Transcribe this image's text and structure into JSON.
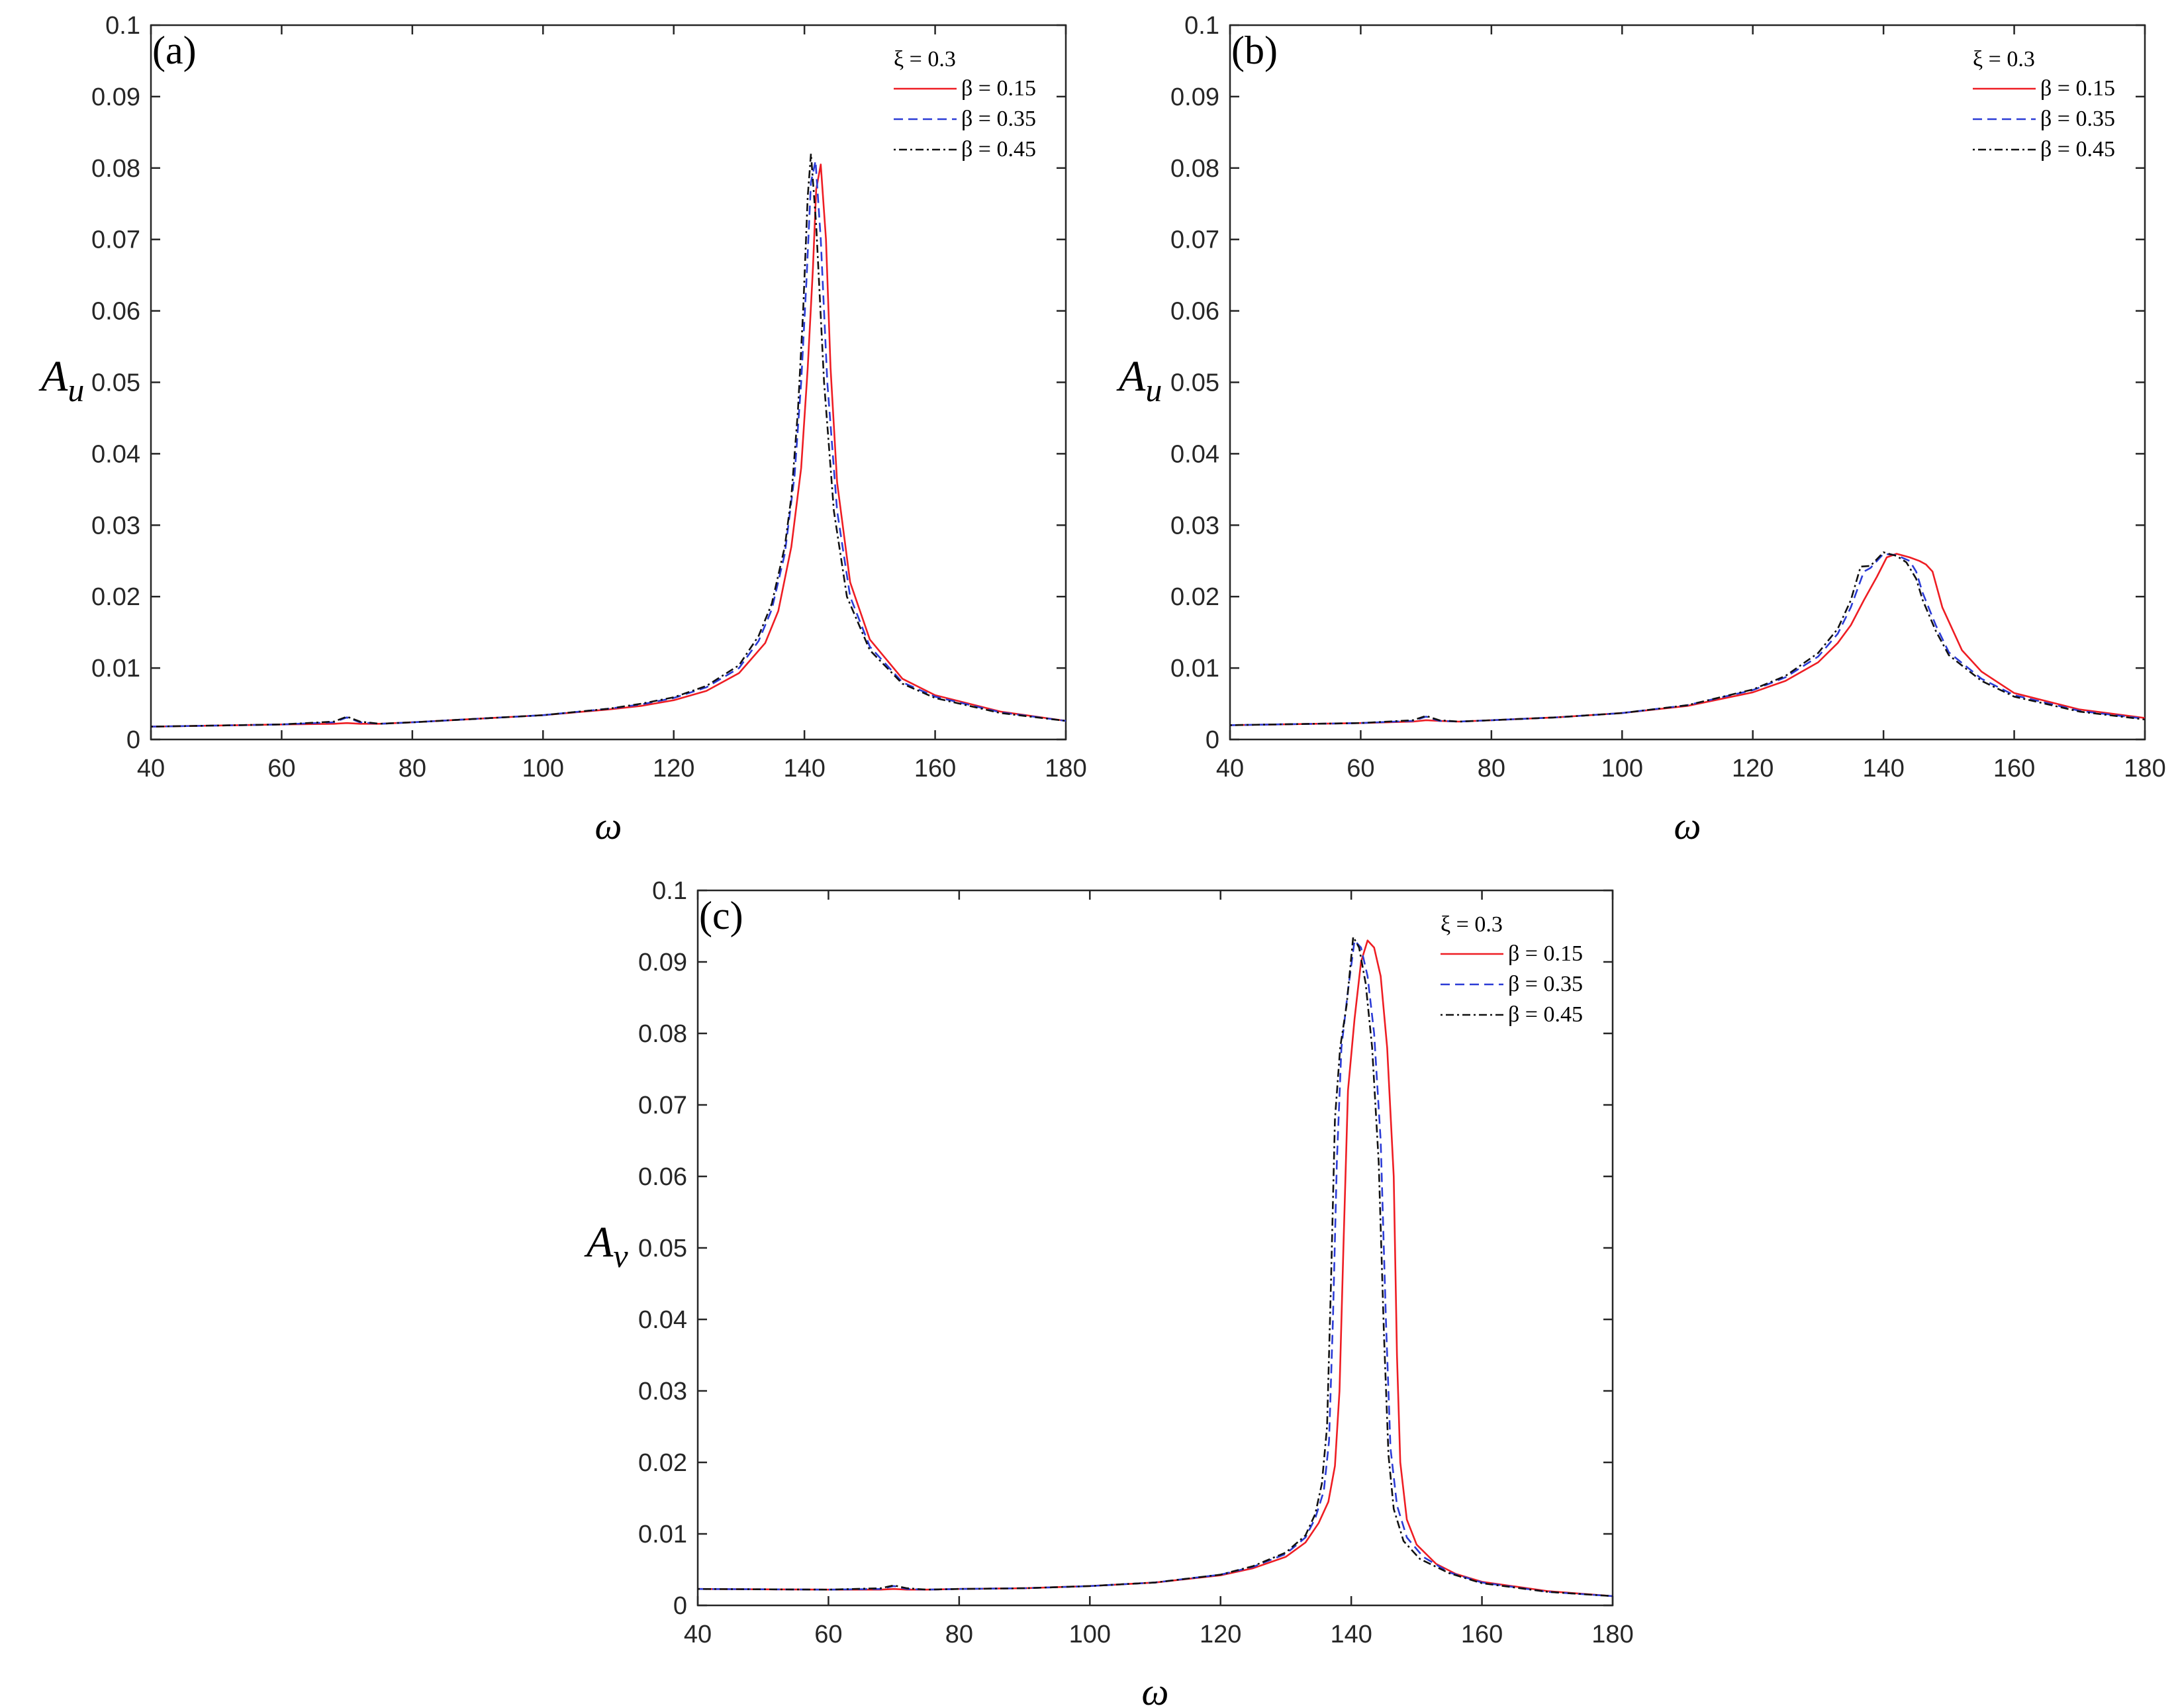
{
  "chart_data": [
    {
      "type": "line",
      "panel_label": "(a)",
      "xlabel": "ω",
      "ylabel_main": "A",
      "ylabel_sub": "u",
      "xlim": [
        40,
        180
      ],
      "ylim": [
        0,
        0.1
      ],
      "xticks": [
        "40",
        "60",
        "80",
        "100",
        "120",
        "140",
        "160",
        "180"
      ],
      "yticks": [
        "0",
        "0.01",
        "0.02",
        "0.03",
        "0.04",
        "0.05",
        "0.06",
        "0.07",
        "0.08",
        "0.09",
        "0.1"
      ],
      "legend_title": "ξ = 0.3",
      "legend_position": "top-right",
      "grid": false,
      "series": [
        {
          "name": "β = 0.15",
          "color": "#ee1d23",
          "dash": "solid",
          "x": [
            40,
            60,
            68,
            70,
            72,
            75,
            80,
            90,
            100,
            110,
            115,
            120,
            125,
            130,
            134,
            136,
            138,
            139.5,
            140.5,
            141.3,
            141.8,
            142.5,
            143.3,
            144,
            145,
            147,
            150,
            155,
            160,
            170,
            180
          ],
          "y": [
            0.0018,
            0.0021,
            0.0022,
            0.0023,
            0.0022,
            0.0022,
            0.0024,
            0.0029,
            0.0034,
            0.0042,
            0.0047,
            0.0055,
            0.0068,
            0.0093,
            0.0135,
            0.018,
            0.027,
            0.038,
            0.052,
            0.066,
            0.077,
            0.0805,
            0.07,
            0.052,
            0.036,
            0.022,
            0.014,
            0.0085,
            0.0062,
            0.0039,
            0.0026
          ]
        },
        {
          "name": "β = 0.35",
          "color": "#2b3bd6",
          "dash": "dashed",
          "x": [
            40,
            60,
            68,
            70,
            72,
            75,
            80,
            90,
            100,
            110,
            115,
            120,
            125,
            130,
            133,
            135,
            137,
            138.5,
            139.5,
            140.3,
            141,
            141.7,
            142.5,
            143.5,
            145,
            147,
            150,
            155,
            160,
            170,
            180
          ],
          "y": [
            0.0018,
            0.0021,
            0.0024,
            0.0031,
            0.0024,
            0.0022,
            0.0024,
            0.0029,
            0.0034,
            0.0043,
            0.0049,
            0.0058,
            0.0073,
            0.01,
            0.0138,
            0.0182,
            0.026,
            0.037,
            0.05,
            0.064,
            0.078,
            0.081,
            0.07,
            0.05,
            0.032,
            0.02,
            0.013,
            0.008,
            0.006,
            0.0038,
            0.0026
          ]
        },
        {
          "name": "β = 0.45",
          "color": "#111111",
          "dash": "dashdot",
          "x": [
            40,
            60,
            68,
            70,
            72,
            75,
            80,
            90,
            100,
            110,
            115,
            120,
            125,
            130,
            133,
            135,
            137,
            138,
            139,
            139.8,
            140.5,
            141,
            141.8,
            143,
            144.5,
            146.5,
            150,
            155,
            160,
            170,
            180
          ],
          "y": [
            0.0018,
            0.0021,
            0.0025,
            0.0032,
            0.0025,
            0.0022,
            0.0024,
            0.0029,
            0.0034,
            0.0043,
            0.005,
            0.0059,
            0.0075,
            0.0104,
            0.0145,
            0.019,
            0.027,
            0.034,
            0.046,
            0.06,
            0.076,
            0.082,
            0.072,
            0.05,
            0.032,
            0.02,
            0.0125,
            0.0078,
            0.0058,
            0.0037,
            0.0026
          ]
        }
      ]
    },
    {
      "type": "line",
      "panel_label": "(b)",
      "xlabel": "ω",
      "ylabel_main": "A",
      "ylabel_sub": "u",
      "xlim": [
        40,
        180
      ],
      "ylim": [
        0,
        0.1
      ],
      "xticks": [
        "40",
        "60",
        "80",
        "100",
        "120",
        "140",
        "160",
        "180"
      ],
      "yticks": [
        "0",
        "0.01",
        "0.02",
        "0.03",
        "0.04",
        "0.05",
        "0.06",
        "0.07",
        "0.08",
        "0.09",
        "0.1"
      ],
      "legend_title": "ξ = 0.3",
      "legend_position": "top-right",
      "grid": false,
      "series": [
        {
          "name": "β = 0.15",
          "color": "#ee1d23",
          "dash": "solid",
          "x": [
            40,
            60,
            68,
            70,
            72,
            75,
            80,
            90,
            100,
            110,
            120,
            125,
            130,
            133,
            135,
            137,
            139,
            140.5,
            142,
            144,
            145.5,
            146.5,
            147.5,
            149,
            152,
            155,
            160,
            170,
            180
          ],
          "y": [
            0.002,
            0.0023,
            0.0025,
            0.0027,
            0.0026,
            0.0025,
            0.0027,
            0.0031,
            0.0037,
            0.0047,
            0.0066,
            0.0082,
            0.0108,
            0.0135,
            0.016,
            0.0195,
            0.0228,
            0.0255,
            0.026,
            0.0255,
            0.025,
            0.0245,
            0.0235,
            0.0185,
            0.0125,
            0.0095,
            0.0065,
            0.0042,
            0.003
          ]
        },
        {
          "name": "β = 0.35",
          "color": "#2b3bd6",
          "dash": "dashed",
          "x": [
            40,
            60,
            68,
            70,
            72,
            75,
            80,
            90,
            100,
            110,
            120,
            125,
            130,
            133,
            135,
            137,
            138,
            140,
            142,
            144,
            145,
            146,
            148,
            150,
            155,
            160,
            170,
            180
          ],
          "y": [
            0.002,
            0.0023,
            0.0026,
            0.0032,
            0.0026,
            0.0025,
            0.0027,
            0.0031,
            0.0037,
            0.0048,
            0.0069,
            0.0087,
            0.0116,
            0.0148,
            0.0185,
            0.0235,
            0.024,
            0.026,
            0.0258,
            0.025,
            0.0235,
            0.0205,
            0.016,
            0.0122,
            0.0085,
            0.0062,
            0.004,
            0.0029
          ]
        },
        {
          "name": "β = 0.45",
          "color": "#111111",
          "dash": "dashdot",
          "x": [
            40,
            60,
            68,
            70,
            72,
            75,
            80,
            90,
            100,
            110,
            120,
            125,
            130,
            133,
            135,
            136.5,
            138,
            140,
            142,
            143.5,
            145,
            146,
            148,
            150,
            155,
            160,
            170,
            180
          ],
          "y": [
            0.002,
            0.0023,
            0.0027,
            0.0033,
            0.0027,
            0.0025,
            0.0027,
            0.0031,
            0.0037,
            0.0048,
            0.007,
            0.0089,
            0.0121,
            0.0155,
            0.0195,
            0.0242,
            0.0243,
            0.0262,
            0.0257,
            0.0248,
            0.0225,
            0.0195,
            0.0152,
            0.0118,
            0.0082,
            0.006,
            0.0039,
            0.0028
          ]
        }
      ]
    },
    {
      "type": "line",
      "panel_label": "(c)",
      "xlabel": "ω",
      "ylabel_main": "A",
      "ylabel_sub": "v",
      "xlim": [
        40,
        180
      ],
      "ylim": [
        0,
        0.1
      ],
      "xticks": [
        "40",
        "60",
        "80",
        "100",
        "120",
        "140",
        "160",
        "180"
      ],
      "yticks": [
        "0",
        "0.01",
        "0.02",
        "0.03",
        "0.04",
        "0.05",
        "0.06",
        "0.07",
        "0.08",
        "0.09",
        "0.1"
      ],
      "legend_title": "ξ = 0.3",
      "legend_position": "top-right",
      "grid": false,
      "series": [
        {
          "name": "β = 0.15",
          "color": "#ee1d23",
          "dash": "solid",
          "x": [
            40,
            60,
            68,
            70,
            72,
            75,
            80,
            90,
            100,
            110,
            120,
            125,
            130,
            133,
            135,
            136.5,
            137.5,
            138.2,
            138.8,
            139.5,
            140.5,
            141.5,
            142.5,
            143.5,
            144.5,
            145.5,
            146.5,
            147,
            147.5,
            148.5,
            150,
            153,
            156,
            160,
            170,
            180
          ],
          "y": [
            0.0023,
            0.0022,
            0.0022,
            0.0023,
            0.0022,
            0.0022,
            0.0023,
            0.0024,
            0.0027,
            0.0032,
            0.0042,
            0.0052,
            0.0068,
            0.0088,
            0.0115,
            0.0145,
            0.0195,
            0.03,
            0.05,
            0.072,
            0.082,
            0.09,
            0.093,
            0.092,
            0.088,
            0.078,
            0.06,
            0.035,
            0.02,
            0.012,
            0.0085,
            0.0058,
            0.0044,
            0.0033,
            0.002,
            0.0013
          ]
        },
        {
          "name": "β = 0.35",
          "color": "#2b3bd6",
          "dash": "dashed",
          "x": [
            40,
            60,
            68,
            70,
            72,
            75,
            80,
            90,
            100,
            110,
            120,
            125,
            130,
            133,
            134.5,
            135.8,
            136.6,
            137.2,
            137.8,
            138.5,
            139.5,
            140.5,
            141.5,
            142.5,
            143.5,
            144.5,
            145.3,
            146,
            147,
            148.5,
            151,
            155,
            160,
            170,
            180
          ],
          "y": [
            0.0023,
            0.0022,
            0.0023,
            0.0027,
            0.0023,
            0.0022,
            0.0023,
            0.0024,
            0.0027,
            0.0032,
            0.0043,
            0.0054,
            0.0072,
            0.0095,
            0.0122,
            0.016,
            0.023,
            0.04,
            0.062,
            0.078,
            0.086,
            0.093,
            0.092,
            0.088,
            0.08,
            0.065,
            0.04,
            0.022,
            0.014,
            0.0095,
            0.0068,
            0.0046,
            0.0032,
            0.0019,
            0.0013
          ]
        },
        {
          "name": "β = 0.45",
          "color": "#111111",
          "dash": "dashdot",
          "x": [
            40,
            60,
            68,
            70,
            72,
            75,
            80,
            90,
            100,
            110,
            120,
            125,
            130,
            133,
            134.5,
            135.5,
            136.3,
            136.9,
            137.5,
            138.3,
            139.3,
            140.3,
            141.2,
            142.2,
            143.2,
            144.2,
            145,
            145.7,
            146.5,
            148,
            150.5,
            155,
            160,
            170,
            180
          ],
          "y": [
            0.0023,
            0.0022,
            0.0024,
            0.0028,
            0.0024,
            0.0022,
            0.0023,
            0.0024,
            0.0027,
            0.0032,
            0.0043,
            0.0055,
            0.0074,
            0.0098,
            0.0128,
            0.017,
            0.025,
            0.045,
            0.068,
            0.078,
            0.084,
            0.0935,
            0.092,
            0.087,
            0.078,
            0.062,
            0.038,
            0.021,
            0.0135,
            0.009,
            0.0065,
            0.0045,
            0.0031,
            0.0019,
            0.0013
          ]
        }
      ]
    }
  ]
}
